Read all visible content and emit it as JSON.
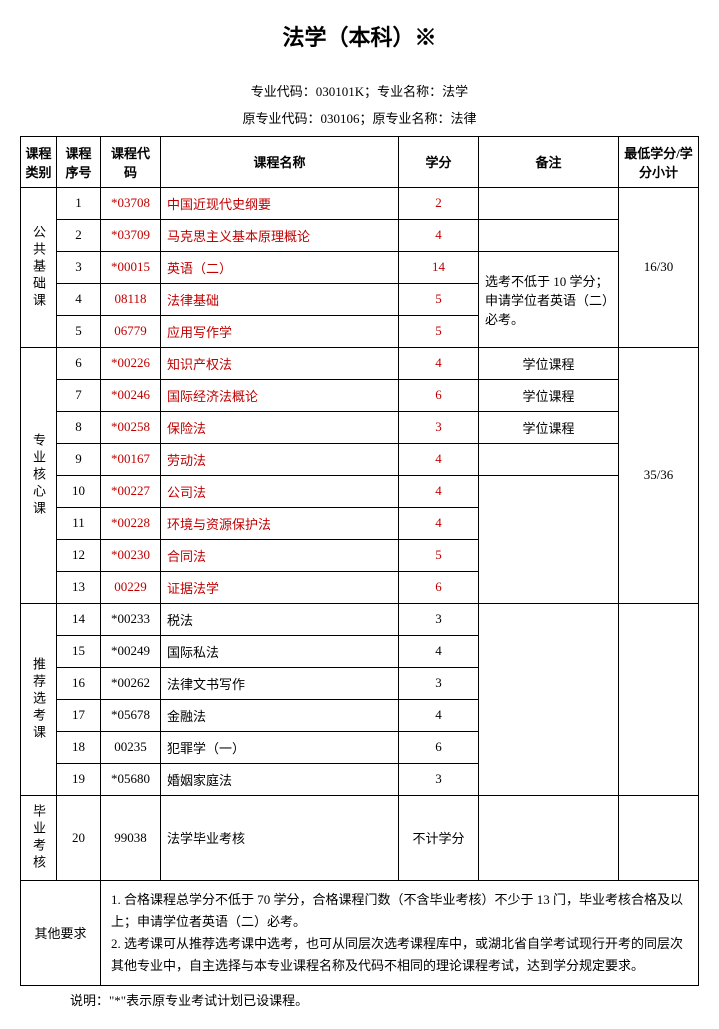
{
  "title": "法学（本科）※",
  "subtitle_line1": "专业代码：030101K；专业名称：法学",
  "subtitle_line2": "原专业代码：030106；原专业名称：法律",
  "headers": {
    "cat": "课程类别",
    "seq": "课程序号",
    "code": "课程代码",
    "name": "课程名称",
    "credit": "学分",
    "remark": "备注",
    "min": "最低学分/学分小计"
  },
  "categories": [
    {
      "label": "公共基础课",
      "min": "16/30",
      "remark_block": "选考不低于 10 学分；申请学位者英语（二）必考。",
      "rows": [
        {
          "seq": "1",
          "code": "*03708",
          "name": "中国近现代史纲要",
          "credit": "2",
          "red": true
        },
        {
          "seq": "2",
          "code": "*03709",
          "name": "马克思主义基本原理概论",
          "credit": "4",
          "red": true
        },
        {
          "seq": "3",
          "code": "*00015",
          "name": "英语（二）",
          "credit": "14",
          "red": true
        },
        {
          "seq": "4",
          "code": "08118",
          "name": "法律基础",
          "credit": "5",
          "red": true
        },
        {
          "seq": "5",
          "code": "06779",
          "name": "应用写作学",
          "credit": "5",
          "red": true
        }
      ]
    },
    {
      "label": "专业核心课",
      "min": "35/36",
      "rows": [
        {
          "seq": "6",
          "code": "*00226",
          "name": "知识产权法",
          "credit": "4",
          "red": true,
          "remark": "学位课程"
        },
        {
          "seq": "7",
          "code": "*00246",
          "name": "国际经济法概论",
          "credit": "6",
          "red": true,
          "remark": "学位课程"
        },
        {
          "seq": "8",
          "code": "*00258",
          "name": "保险法",
          "credit": "3",
          "red": true,
          "remark": "学位课程"
        },
        {
          "seq": "9",
          "code": "*00167",
          "name": "劳动法",
          "credit": "4",
          "red": true
        },
        {
          "seq": "10",
          "code": "*00227",
          "name": "公司法",
          "credit": "4",
          "red": true
        },
        {
          "seq": "11",
          "code": "*00228",
          "name": "环境与资源保护法",
          "credit": "4",
          "red": true
        },
        {
          "seq": "12",
          "code": "*00230",
          "name": "合同法",
          "credit": "5",
          "red": true
        },
        {
          "seq": "13",
          "code": "00229",
          "name": "证据法学",
          "credit": "6",
          "red": true
        }
      ]
    },
    {
      "label": "推荐选考课",
      "min": "",
      "rows": [
        {
          "seq": "14",
          "code": "*00233",
          "name": "税法",
          "credit": "3"
        },
        {
          "seq": "15",
          "code": "*00249",
          "name": "国际私法",
          "credit": "4"
        },
        {
          "seq": "16",
          "code": "*00262",
          "name": "法律文书写作",
          "credit": "3"
        },
        {
          "seq": "17",
          "code": "*05678",
          "name": "金融法",
          "credit": "4"
        },
        {
          "seq": "18",
          "code": "00235",
          "name": "犯罪学（一）",
          "credit": "6"
        },
        {
          "seq": "19",
          "code": "*05680",
          "name": "婚姻家庭法",
          "credit": "3"
        }
      ]
    },
    {
      "label": "毕业考核",
      "min": "",
      "rows": [
        {
          "seq": "20",
          "code": "99038",
          "name": "法学毕业考核",
          "credit": "不计学分"
        }
      ]
    }
  ],
  "other_req_label": "其他要求",
  "other_req_1": "1.  合格课程总学分不低于 70 学分，合格课程门数（不含毕业考核）不少于 13 门，毕业考核合格及以上；申请学位者英语（二）必考。",
  "other_req_2": "2.  选考课可从推荐选考课中选考，也可从同层次选考课程库中，或湖北省自学考试现行开考的同层次其他专业中，自主选择与本专业课程名称及代码不相同的理论课程考试，达到学分规定要求。",
  "footer_note": "说明：\"*\"表示原专业考试计划已设课程。"
}
